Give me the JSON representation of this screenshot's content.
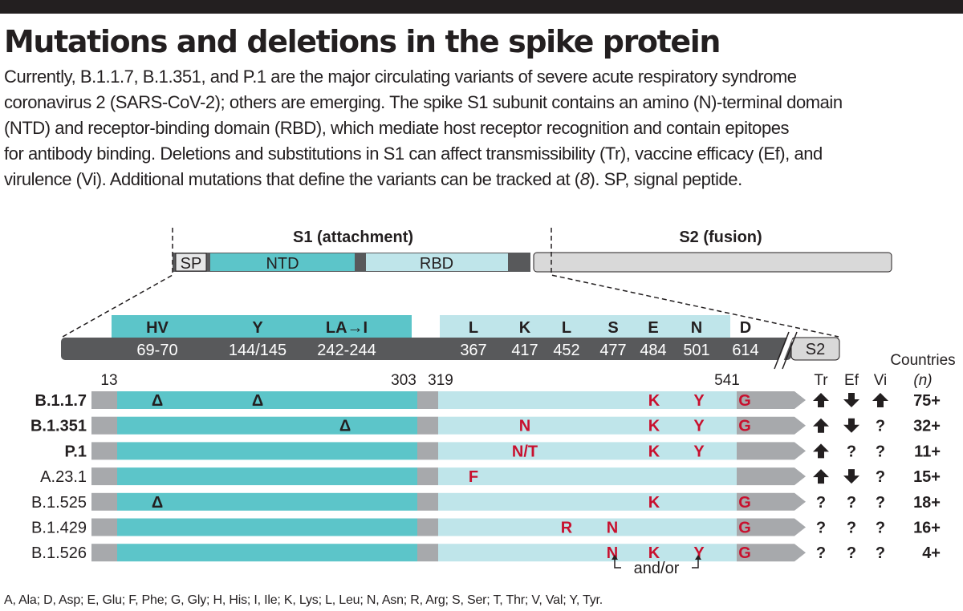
{
  "title": "Mutations and deletions in the spike protein",
  "description": {
    "line1": "Currently, B.1.1.7, B.1.351, and P.1 are the major circulating variants of severe acute respiratory syndrome",
    "line2": "coronavirus 2 (SARS-CoV-2); others are emerging. The spike S1 subunit contains an amino (N)-terminal domain",
    "line3": "(NTD) and receptor-binding domain (RBD), which mediate host receptor recognition and contain epitopes",
    "line4": "for antibody binding. Deletions and substitutions in S1 can affect transmissibility (Tr), vaccine efficacy (Ef), and",
    "line5_pre": "virulence (Vi). Additional mutations that define the variants can be tracked at (",
    "line5_ref": "8",
    "line5_post": "). SP, signal peptide."
  },
  "overview": {
    "s1_label": "S1 (attachment)",
    "s2_label": "S2 (fusion)",
    "sp": "SP",
    "ntd": "NTD",
    "rbd": "RBD"
  },
  "sites": [
    {
      "residue": "HV",
      "position": "69-70"
    },
    {
      "residue": "Y",
      "position": "144/145"
    },
    {
      "residue": "LA→I",
      "position": "242-244"
    },
    {
      "residue": "L",
      "position": "367"
    },
    {
      "residue": "K",
      "position": "417"
    },
    {
      "residue": "L",
      "position": "452"
    },
    {
      "residue": "S",
      "position": "477"
    },
    {
      "residue": "E",
      "position": "484"
    },
    {
      "residue": "N",
      "position": "501"
    },
    {
      "residue": "D",
      "position": "614"
    }
  ],
  "detail_s2": "S2",
  "boundaries": {
    "b13": "13",
    "b303": "303",
    "b319": "319",
    "b541": "541"
  },
  "headers": {
    "tr": "Tr",
    "ef": "Ef",
    "vi": "Vi",
    "countries": "Countries",
    "n": "(n)"
  },
  "variants": [
    {
      "name": "B.1.1.7",
      "bold": true,
      "mutations": [
        "Δ",
        "Δ",
        "K",
        "Y",
        "G"
      ],
      "tr": "up",
      "ef": "down",
      "vi": "up",
      "countries": "75+"
    },
    {
      "name": "B.1.351",
      "bold": true,
      "mutations": [
        "Δ",
        "N",
        "K",
        "Y",
        "G"
      ],
      "tr": "up",
      "ef": "down",
      "vi": "?",
      "countries": "32+"
    },
    {
      "name": "P.1",
      "bold": true,
      "mutations": [
        "N/T",
        "K",
        "Y"
      ],
      "tr": "up",
      "ef": "?",
      "vi": "?",
      "countries": "11+"
    },
    {
      "name": "A.23.1",
      "bold": false,
      "mutations": [
        "F"
      ],
      "tr": "up",
      "ef": "down",
      "vi": "?",
      "countries": "15+"
    },
    {
      "name": "B.1.525",
      "bold": false,
      "mutations": [
        "Δ",
        "K",
        "G"
      ],
      "tr": "?",
      "ef": "?",
      "vi": "?",
      "countries": "18+"
    },
    {
      "name": "B.1.429",
      "bold": false,
      "mutations": [
        "R",
        "N",
        "G"
      ],
      "tr": "?",
      "ef": "?",
      "vi": "?",
      "countries": "16+"
    },
    {
      "name": "B.1.526",
      "bold": false,
      "mutations": [
        "N",
        "K",
        "Y",
        "G"
      ],
      "tr": "?",
      "ef": "?",
      "vi": "?",
      "countries": "4+"
    }
  ],
  "and_or": "and/or",
  "footer": "A, Ala; D, Asp; E, Glu; F, Phe; G, Gly; H, His; I, Ile; K, Lys; L, Leu; N, Asn; R, Arg; S, Ser; T, Thr; V, Val; Y, Tyr.",
  "colors": {
    "ntd": "#5cc5c9",
    "rbd": "#bfe5ea",
    "grey": "#a7a9ac",
    "dark": "#58595b",
    "s2": "#d9d9d9",
    "mutation": "#c8102e",
    "text": "#231f20"
  }
}
